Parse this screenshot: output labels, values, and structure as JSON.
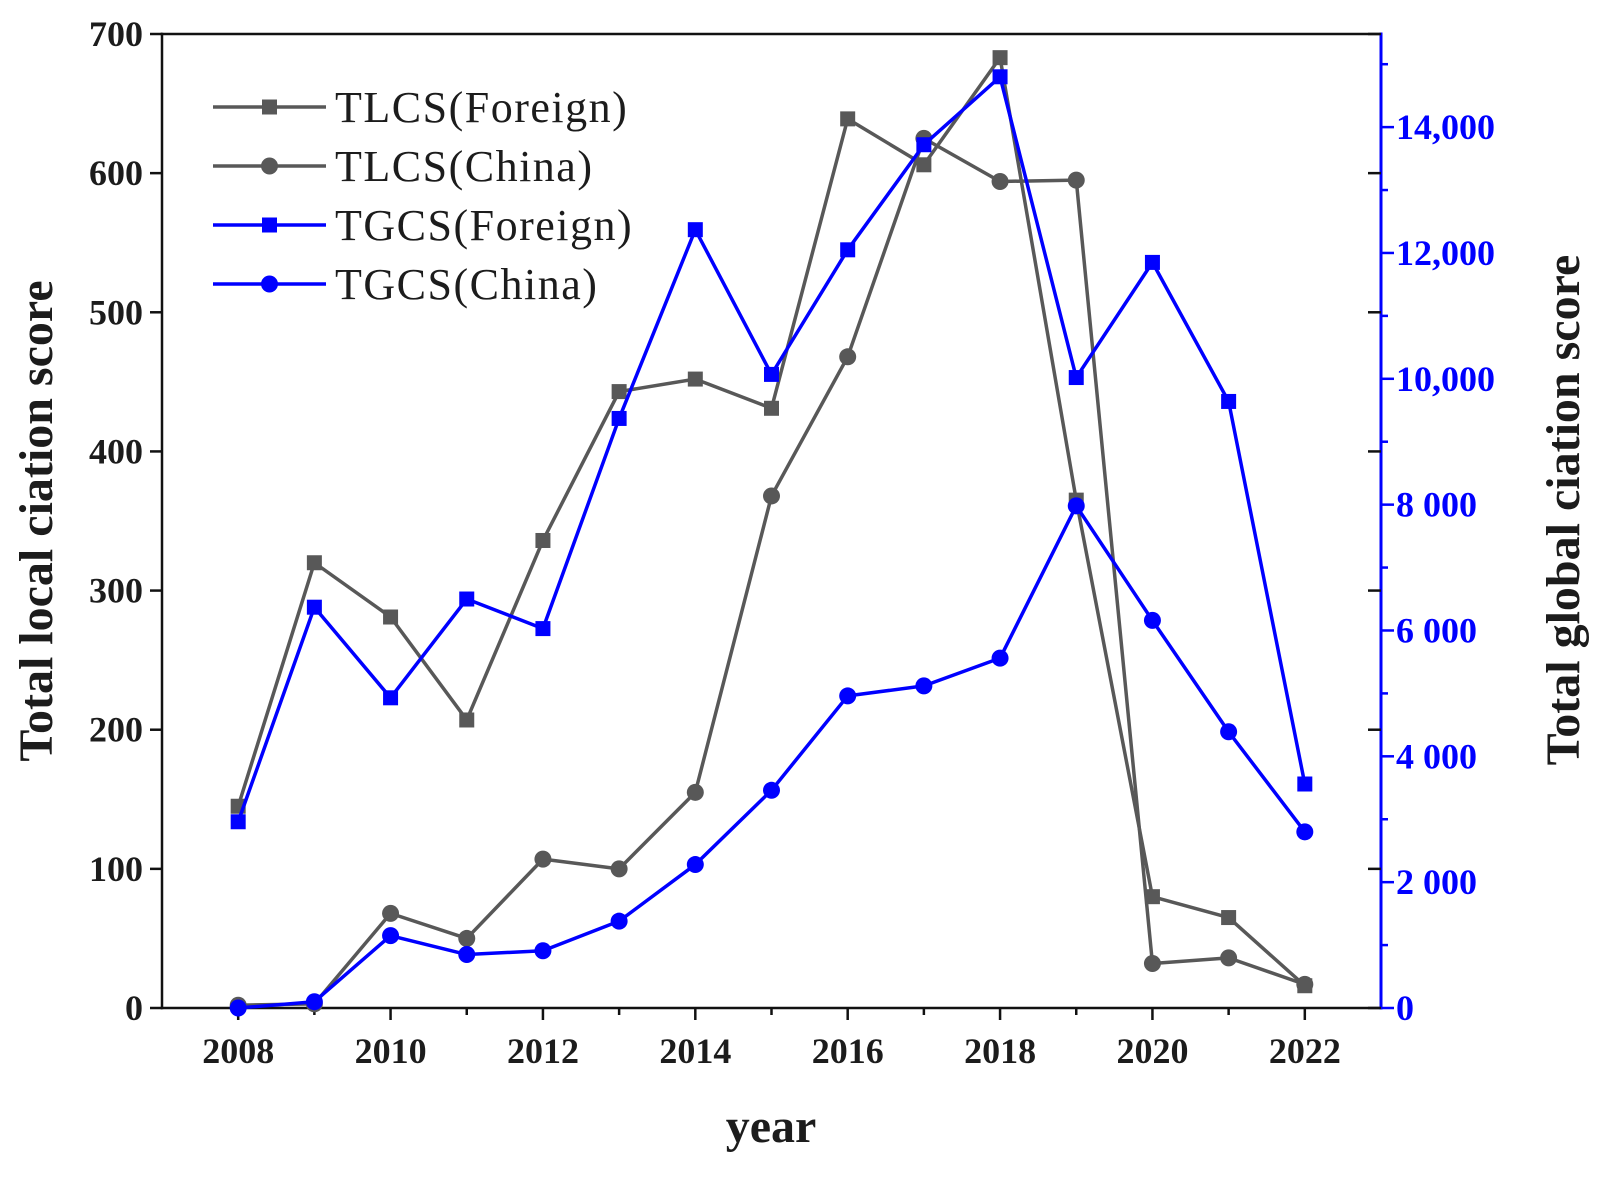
{
  "chart_data": {
    "type": "line",
    "xlabel": "year",
    "ylabel": "Total local ciation score",
    "y2label": "Total global ciation score",
    "x": [
      2008,
      2009,
      2010,
      2011,
      2012,
      2013,
      2014,
      2015,
      2016,
      2017,
      2018,
      2019,
      2020,
      2021,
      2022
    ],
    "xlim": [
      2007,
      2023
    ],
    "x_ticks": [
      2008,
      2010,
      2012,
      2014,
      2016,
      2018,
      2020,
      2022
    ],
    "x_tick_labels": [
      "2008",
      "2010",
      "2012",
      "2014",
      "2016",
      "2018",
      "2020",
      "2022"
    ],
    "ylim": [
      0,
      700
    ],
    "y_ticks": [
      0,
      100,
      200,
      300,
      400,
      500,
      600,
      700
    ],
    "y_tick_labels": [
      "0",
      "100",
      "200",
      "300",
      "400",
      "500",
      "600",
      "700"
    ],
    "y2lim": [
      0,
      15480
    ],
    "y2_ticks": [
      0,
      2000,
      4000,
      6000,
      8000,
      10000,
      12000,
      14000
    ],
    "y2_tick_labels": [
      "0",
      "2 000",
      "4 000",
      "6 000",
      "8 000",
      "10,000",
      "12,000",
      "14,000"
    ],
    "y2_color": "#0000ff",
    "axis_color": "#111111",
    "grid": false,
    "legend_position": "top-left",
    "series": [
      {
        "name": "TLCS(Foreign)",
        "secondary_axis": false,
        "marker": "square",
        "color": "#585858",
        "values": [
          145,
          320,
          281,
          207,
          336,
          443,
          452,
          431,
          639,
          606,
          683,
          365,
          80,
          65,
          16
        ]
      },
      {
        "name": "TLCS(China)",
        "secondary_axis": false,
        "marker": "circle",
        "color": "#585858",
        "values": [
          2,
          3,
          68,
          50,
          107,
          100,
          155,
          368,
          468,
          625,
          594,
          595,
          32,
          36,
          17
        ]
      },
      {
        "name": "TGCS(Foreign)",
        "secondary_axis": true,
        "marker": "square",
        "color": "#0000ff",
        "values": [
          2960,
          6370,
          4930,
          6500,
          6030,
          9370,
          12370,
          10070,
          12050,
          13720,
          14800,
          10020,
          11850,
          9640,
          3560
        ]
      },
      {
        "name": "TGCS(China)",
        "secondary_axis": true,
        "marker": "circle",
        "color": "#0000ff",
        "values": [
          0,
          100,
          1150,
          850,
          910,
          1380,
          2280,
          3460,
          4960,
          5120,
          5560,
          7980,
          6160,
          4390,
          2800
        ]
      }
    ]
  }
}
